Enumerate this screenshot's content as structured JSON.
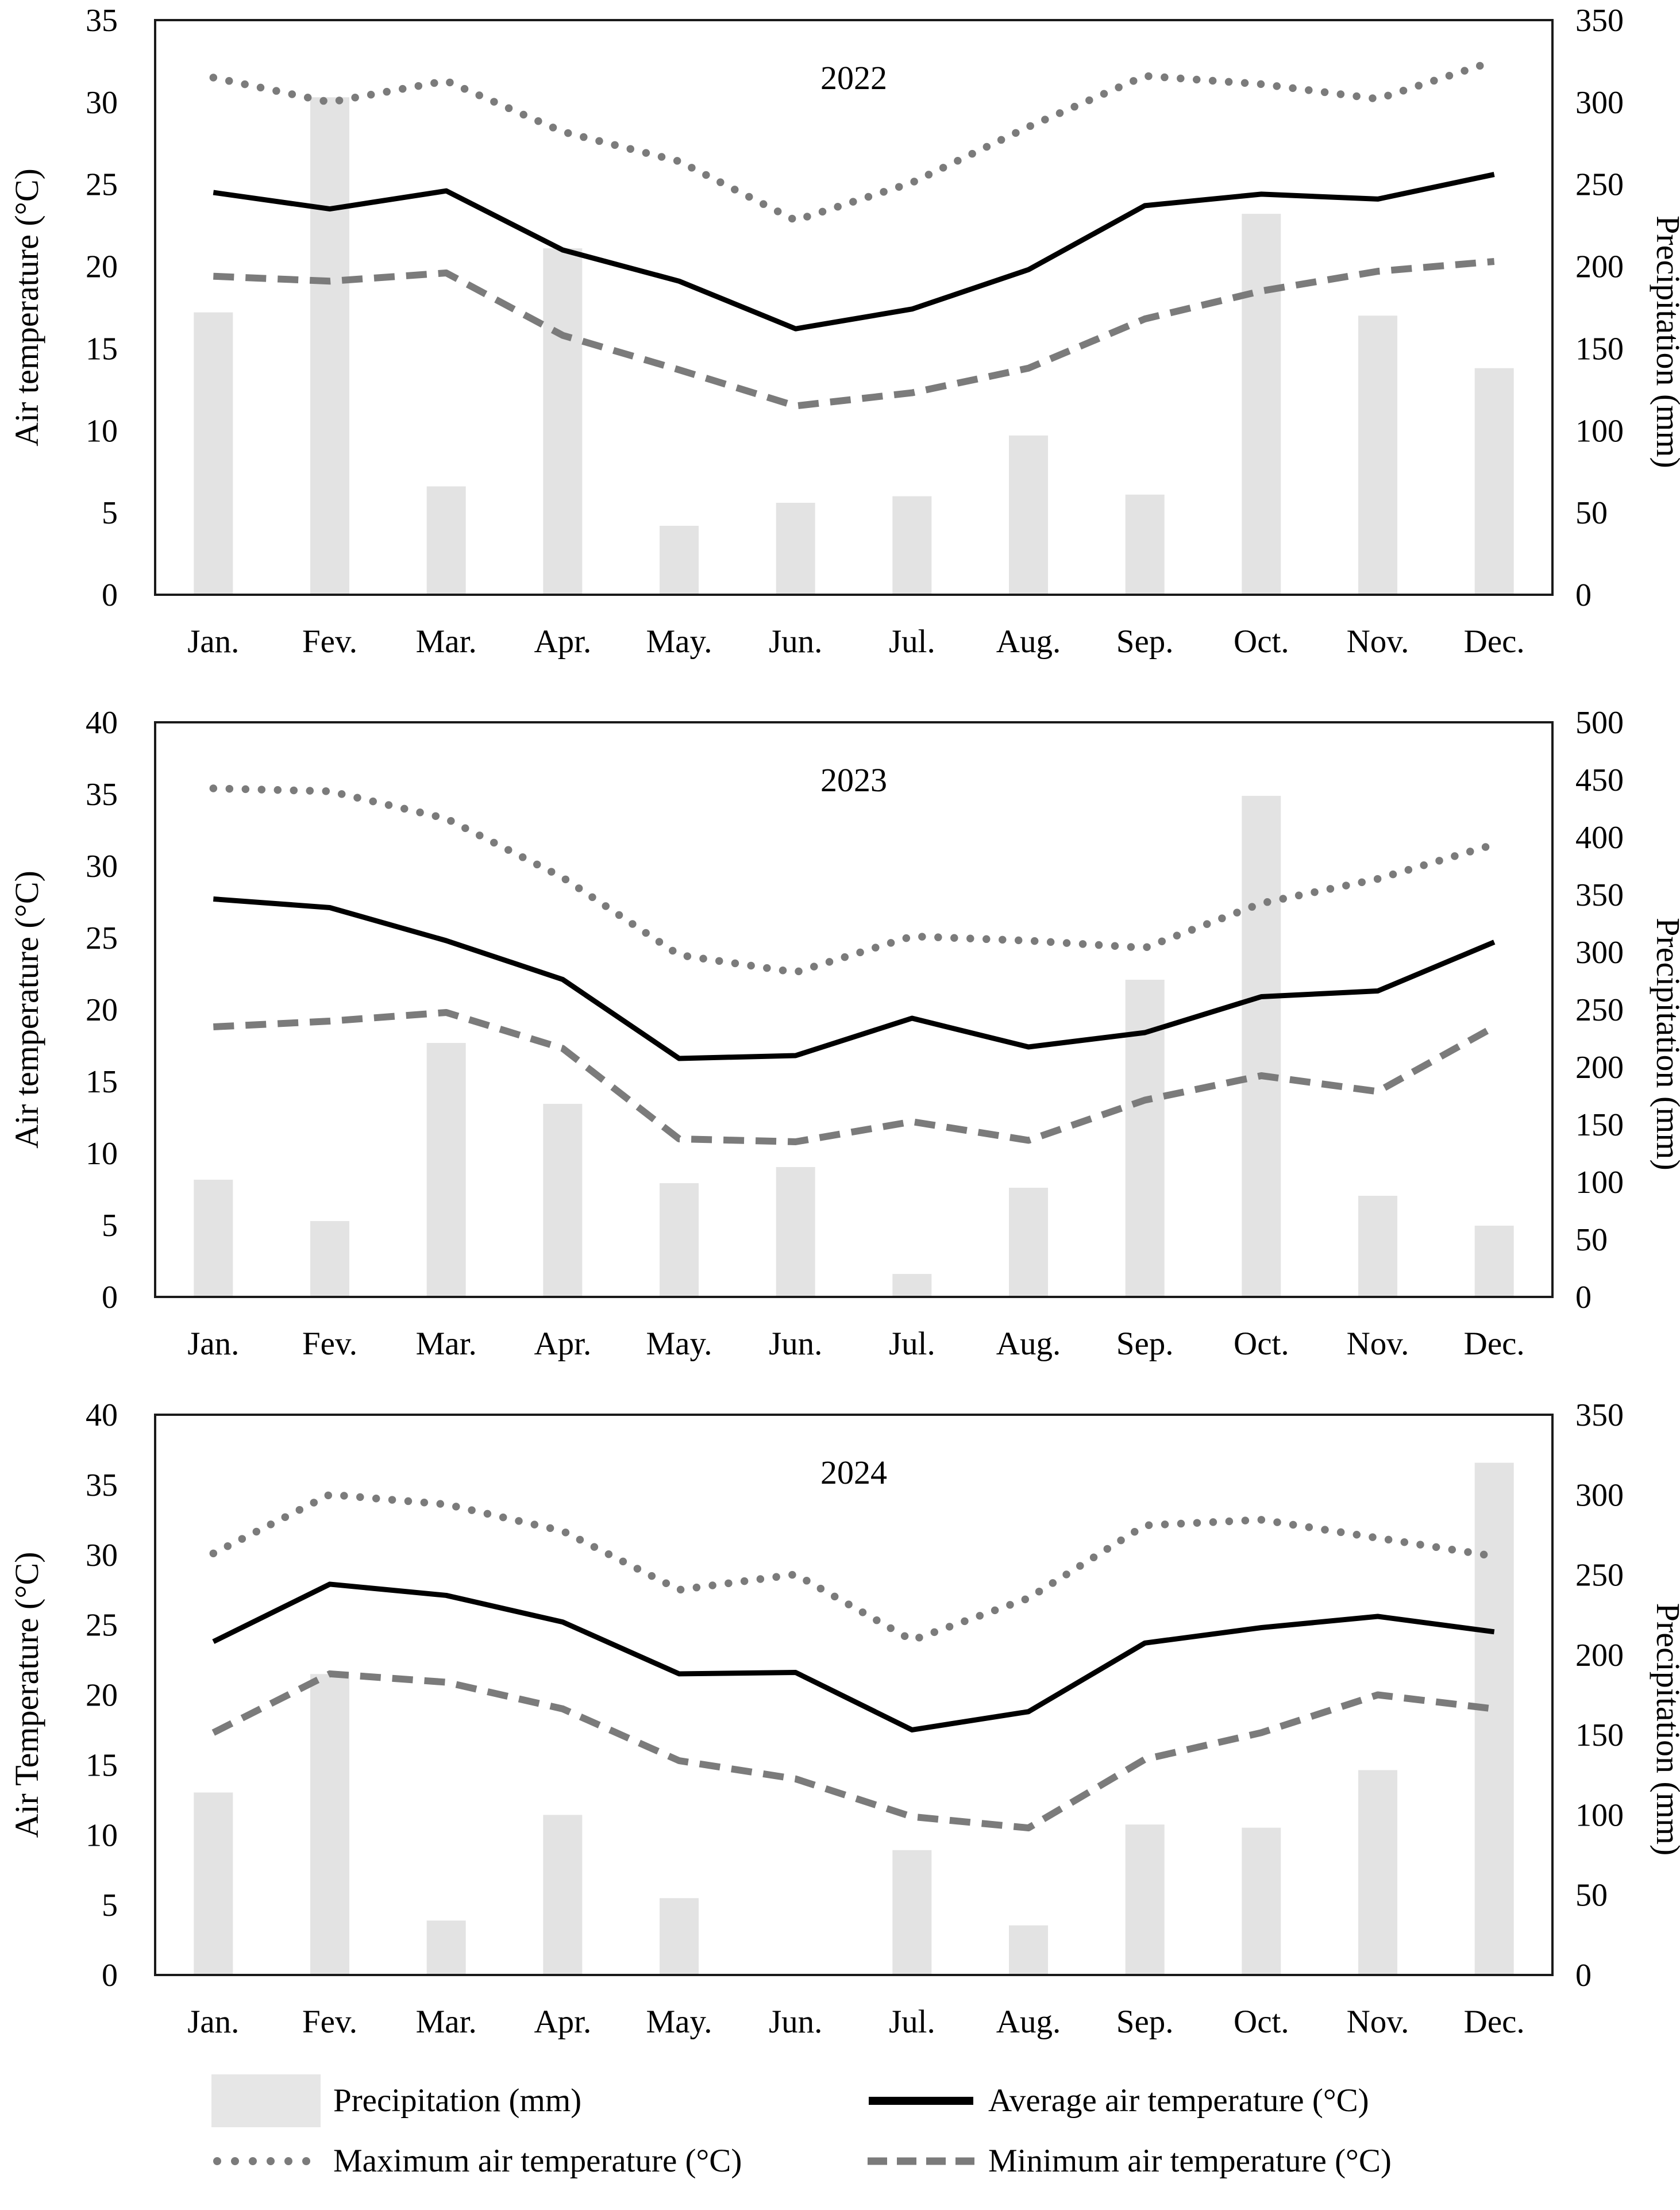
{
  "colors": {
    "bar_fill": "#e3e3e3",
    "gray_line": "#7b7b7b",
    "black_line": "#000000",
    "border": "#1a1a1a"
  },
  "legend": {
    "items": [
      {
        "label": "Precipitation (mm)",
        "style": "bar"
      },
      {
        "label": "Average air temperature (°C)",
        "style": "solid"
      },
      {
        "label": "Maximum air temperature (°C)",
        "style": "dotted"
      },
      {
        "label": "Minimum air temperature (°C)",
        "style": "dashed"
      }
    ]
  },
  "chart_data": [
    {
      "type": "bar+line",
      "title": "2022",
      "categories": [
        "Jan.",
        "Fev.",
        "Mar.",
        "Apr.",
        "May.",
        "Jun.",
        "Jul.",
        "Aug.",
        "Sep.",
        "Oct.",
        "Nov.",
        "Dec."
      ],
      "ylabel_left": "Air temperature (°C)",
      "ylabel_right": "Precipitation (mm)",
      "ylim_left": [
        0,
        35
      ],
      "yticks_left": [
        0,
        5,
        10,
        15,
        20,
        25,
        30,
        35
      ],
      "ylim_right": [
        0,
        350
      ],
      "yticks_right": [
        0,
        50,
        100,
        150,
        200,
        250,
        300,
        350
      ],
      "grid": false,
      "series": [
        {
          "name": "Precipitation (mm)",
          "type": "bar",
          "axis": "right",
          "values": [
            172,
            303,
            66,
            211,
            42,
            56,
            60,
            97,
            61,
            232,
            170,
            138
          ]
        },
        {
          "name": "Maximum air temperature (°C)",
          "type": "line",
          "style": "dotted",
          "axis": "left",
          "values": [
            31.5,
            30.0,
            31.3,
            28.2,
            26.4,
            22.8,
            25.1,
            28.5,
            31.6,
            31.1,
            30.2,
            32.5
          ]
        },
        {
          "name": "Minimum air temperature (°C)",
          "type": "line",
          "style": "dashed",
          "axis": "left",
          "values": [
            19.4,
            19.1,
            19.6,
            15.8,
            13.7,
            11.5,
            12.3,
            13.8,
            16.8,
            18.5,
            19.7,
            20.3
          ]
        },
        {
          "name": "Average air temperature (°C)",
          "type": "line",
          "style": "solid",
          "axis": "left",
          "values": [
            24.5,
            23.5,
            24.6,
            21.0,
            19.1,
            16.2,
            17.4,
            19.8,
            23.7,
            24.4,
            24.1,
            25.6
          ]
        }
      ]
    },
    {
      "type": "bar+line",
      "title": "2023",
      "categories": [
        "Jan.",
        "Fev.",
        "Mar.",
        "Apr.",
        "May.",
        "Jun.",
        "Jul.",
        "Aug.",
        "Sep.",
        "Oct.",
        "Nov.",
        "Dec."
      ],
      "ylabel_left": "Air temperature (°C)",
      "ylabel_right": "Precipitation  (mm)",
      "ylim_left": [
        0,
        40
      ],
      "yticks_left": [
        0,
        5,
        10,
        15,
        20,
        25,
        30,
        35,
        40
      ],
      "ylim_right": [
        0,
        500
      ],
      "yticks_right": [
        0,
        50,
        100,
        150,
        200,
        250,
        300,
        350,
        400,
        450,
        500
      ],
      "grid": false,
      "series": [
        {
          "name": "Precipitation (mm)",
          "type": "bar",
          "axis": "right",
          "values": [
            102,
            66,
            221,
            168,
            99,
            113,
            20,
            95,
            276,
            436,
            88,
            62
          ]
        },
        {
          "name": "Maximum air temperature (°C)",
          "type": "line",
          "style": "dotted",
          "axis": "left",
          "values": [
            35.4,
            35.2,
            33.3,
            29.2,
            23.8,
            22.6,
            25.1,
            24.8,
            24.3,
            27.4,
            29.1,
            31.5
          ]
        },
        {
          "name": "Minimum air temperature (°C)",
          "type": "line",
          "style": "dashed",
          "axis": "left",
          "values": [
            18.8,
            19.2,
            19.8,
            17.3,
            11.0,
            10.8,
            12.2,
            10.9,
            13.7,
            15.4,
            14.3,
            18.8
          ]
        },
        {
          "name": "Average air temperature (°C)",
          "type": "line",
          "style": "solid",
          "axis": "left",
          "values": [
            27.7,
            27.1,
            24.8,
            22.1,
            16.6,
            16.8,
            19.4,
            17.4,
            18.4,
            20.9,
            21.3,
            24.7
          ]
        }
      ]
    },
    {
      "type": "bar+line",
      "title": "2024",
      "categories": [
        "Jan.",
        "Fev.",
        "Mar.",
        "Apr.",
        "May.",
        "Jun.",
        "Jul.",
        "Aug.",
        "Sep.",
        "Oct.",
        "Nov.",
        "Dec."
      ],
      "ylabel_left": "Air Temperature (°C)",
      "ylabel_right": "Precipitation  (mm)",
      "ylim_left": [
        0,
        40
      ],
      "yticks_left": [
        0,
        5,
        10,
        15,
        20,
        25,
        30,
        35,
        40
      ],
      "ylim_right": [
        0,
        350
      ],
      "yticks_right": [
        0,
        50,
        100,
        150,
        200,
        250,
        300,
        350
      ],
      "grid": false,
      "series": [
        {
          "name": "Precipitation (mm)",
          "type": "bar",
          "axis": "right",
          "values": [
            114,
            188,
            34,
            100,
            48,
            0,
            78,
            31,
            94,
            92,
            128,
            320
          ]
        },
        {
          "name": "Maximum air temperature (°C)",
          "type": "line",
          "style": "dotted",
          "axis": "left",
          "values": [
            30.1,
            34.3,
            33.6,
            31.7,
            27.5,
            28.6,
            23.9,
            26.9,
            32.1,
            32.5,
            31.2,
            29.9
          ]
        },
        {
          "name": "Minimum air temperature (°C)",
          "type": "line",
          "style": "dashed",
          "axis": "left",
          "values": [
            17.3,
            21.5,
            20.9,
            19.0,
            15.3,
            14.0,
            11.3,
            10.5,
            15.4,
            17.3,
            20.0,
            19.0
          ]
        },
        {
          "name": "Average air temperature (°C)",
          "type": "line",
          "style": "solid",
          "axis": "left",
          "values": [
            23.8,
            27.9,
            27.1,
            25.2,
            21.5,
            21.6,
            17.5,
            18.8,
            23.7,
            24.8,
            25.6,
            24.5
          ]
        }
      ]
    }
  ]
}
